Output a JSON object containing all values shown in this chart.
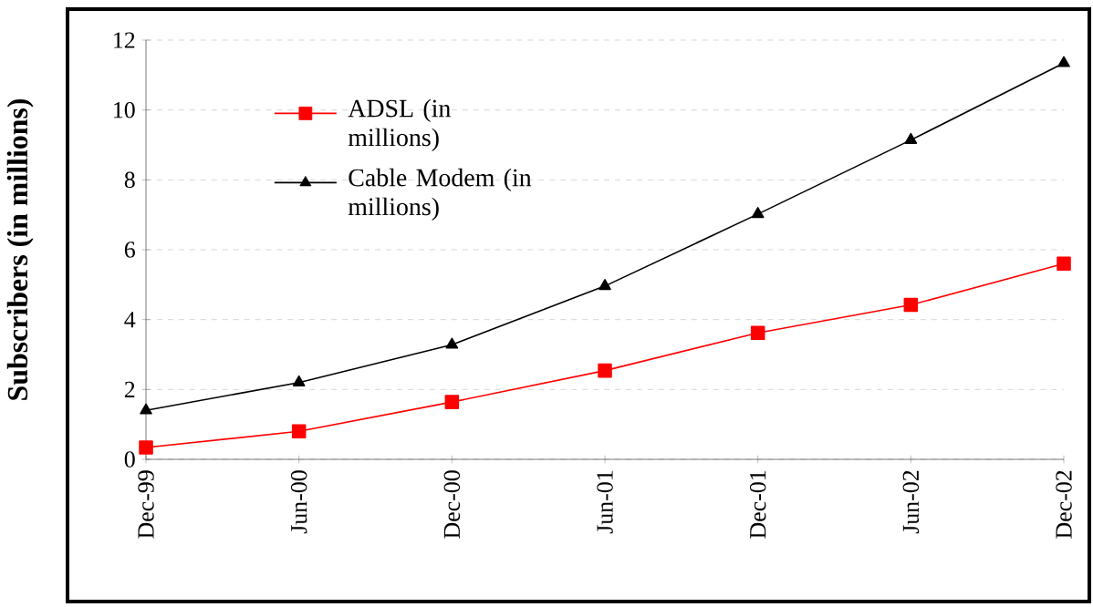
{
  "chart_data": {
    "type": "line",
    "ylabel": "Subscribers (in millions)",
    "categories": [
      "Dec-99",
      "Jun-00",
      "Dec-00",
      "Jun-01",
      "Dec-01",
      "Jun-02",
      "Dec-02"
    ],
    "series": [
      {
        "name": "ADSL (in millions)",
        "color": "#ff0000",
        "marker": "square",
        "values": [
          0.34,
          0.8,
          1.64,
          2.54,
          3.62,
          4.42,
          5.6
        ]
      },
      {
        "name": "Cable Modem (in millions)",
        "color": "#000000",
        "marker": "triangle",
        "values": [
          1.4,
          2.2,
          3.28,
          4.96,
          7.02,
          9.14,
          11.34
        ]
      }
    ],
    "ylim": [
      0,
      12
    ],
    "yticks": [
      0,
      2,
      4,
      6,
      8,
      10,
      12
    ],
    "grid": "y",
    "legend": "top left",
    "line_style": "solid"
  }
}
